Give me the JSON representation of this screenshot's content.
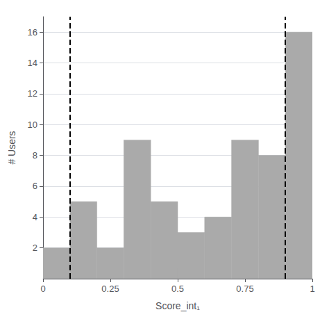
{
  "chart_data": {
    "type": "histogram",
    "bins": [
      0.0,
      0.1,
      0.2,
      0.3,
      0.4,
      0.5,
      0.6,
      0.7,
      0.8,
      0.9,
      1.0
    ],
    "values": [
      2,
      5,
      2,
      9,
      5,
      3,
      4,
      9,
      8,
      16
    ],
    "color": "#aaaaaa",
    "lines": [
      {
        "x": 0.1,
        "color": "black",
        "line_style": "dashed"
      },
      {
        "x": 0.9,
        "color": "black",
        "line_style": "dashed"
      }
    ],
    "xlabel": "Score_int₁",
    "ylabel": "# Users",
    "xlim": [
      0,
      1
    ],
    "xticks": [
      0,
      0.25,
      0.5,
      0.75,
      1
    ],
    "ylim": [
      0,
      17
    ],
    "yticks": [
      2,
      4,
      6,
      8,
      10,
      12,
      14,
      16
    ],
    "grid": "y"
  }
}
